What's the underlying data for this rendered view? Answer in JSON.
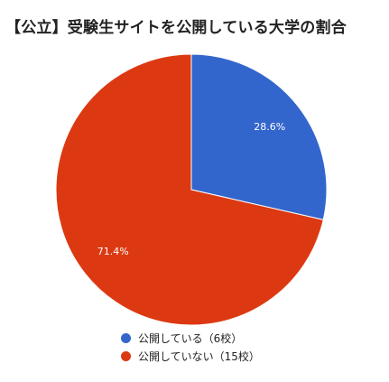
{
  "chart_data": {
    "type": "pie",
    "title": "【公立】受験生サイトを公開している大学の割合",
    "legend_position": "bottom",
    "slices": [
      {
        "label": "公開している",
        "value": 6,
        "legend_text": "公開している（6校）",
        "percent_label": "28.6%",
        "color": "#3366cc"
      },
      {
        "label": "公開していない",
        "value": 15,
        "legend_text": "公開していない（15校）",
        "percent_label": "71.4%",
        "color": "#dc3912"
      }
    ]
  }
}
